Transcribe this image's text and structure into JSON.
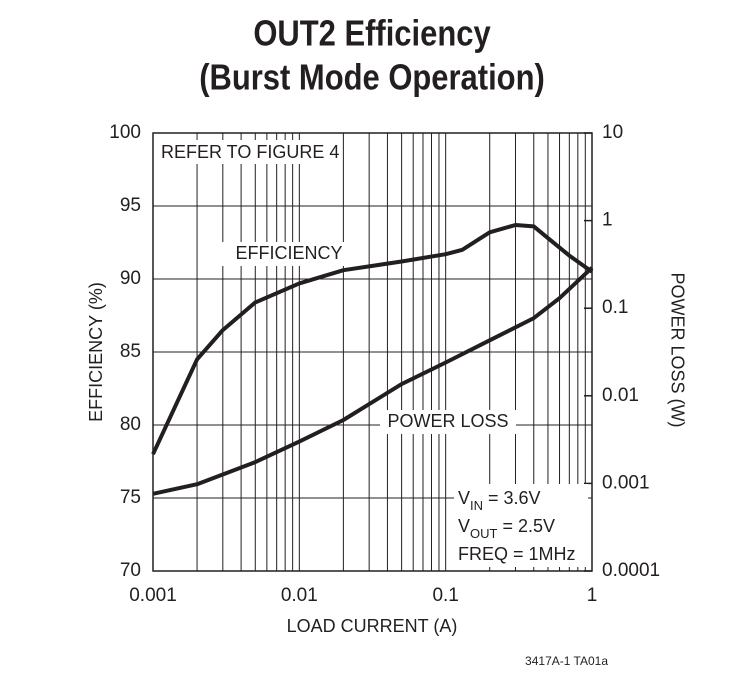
{
  "chart_data": {
    "type": "line",
    "title": [
      "OUT2 Efficiency",
      "(Burst Mode Operation)"
    ],
    "xlabel": "LOAD CURRENT (A)",
    "ylabel": "EFFICIENCY (%)",
    "y2label": "POWER LOSS (W)",
    "xscale": "log",
    "y2scale": "log",
    "grid": true,
    "x_minor_grid": true,
    "xlim": [
      0.001,
      1
    ],
    "xticks": [
      0.001,
      0.01,
      0.1,
      1
    ],
    "ylim": [
      70,
      100
    ],
    "yticks": [
      70,
      75,
      80,
      85,
      90,
      95,
      100
    ],
    "y2lim": [
      0.0001,
      10
    ],
    "y2ticks": [
      0.0001,
      0.001,
      0.01,
      0.1,
      1,
      10
    ],
    "series": [
      {
        "name": "EFFICIENCY",
        "color": "#231f20",
        "x": [
          0.001,
          0.002,
          0.003,
          0.005,
          0.01,
          0.02,
          0.05,
          0.1,
          0.13,
          0.2,
          0.3,
          0.4,
          0.5,
          0.7,
          1
        ],
        "values": [
          78,
          84.5,
          86.5,
          88.4,
          89.7,
          90.6,
          91.2,
          91.7,
          92.0,
          93.2,
          93.7,
          93.6,
          92.8,
          91.6,
          90.5
        ]
      },
      {
        "name": "POWER LOSS",
        "color": "#231f20",
        "axis": "y2",
        "x": [
          0.001,
          0.002,
          0.005,
          0.01,
          0.02,
          0.05,
          0.1,
          0.2,
          0.4,
          0.6,
          1
        ],
        "values": [
          0.00076,
          0.00098,
          0.00175,
          0.003,
          0.0053,
          0.0136,
          0.024,
          0.043,
          0.077,
          0.13,
          0.29
        ]
      }
    ],
    "annotations": [
      "REFER TO FIGURE 4"
    ],
    "conditions": [
      {
        "text": "V",
        "sub": "IN",
        "rest": " = 3.6V"
      },
      {
        "text": "V",
        "sub": "OUT",
        "rest": " = 2.5V"
      },
      {
        "text": "FREQ = 1MHz"
      }
    ],
    "footnote": "3417A-1 TA01a"
  }
}
